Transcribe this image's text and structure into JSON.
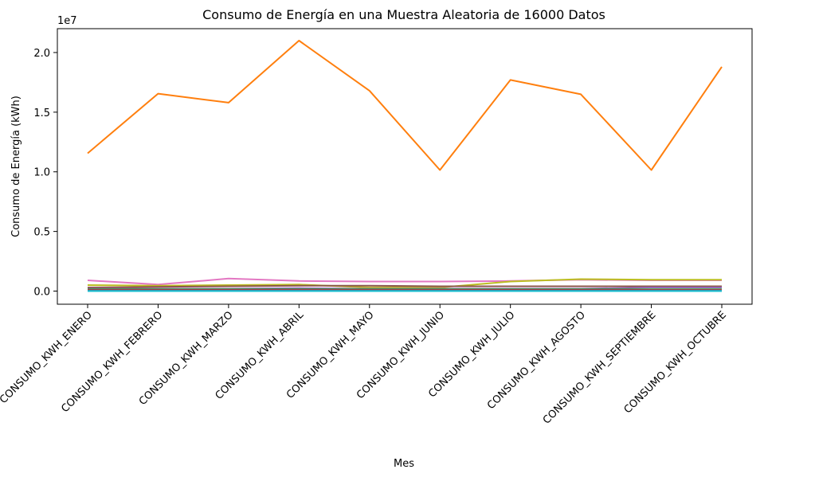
{
  "chart_data": {
    "type": "line",
    "title": "Consumo de Energía en una Muestra Aleatoria de 16000 Datos",
    "xlabel": "Mes",
    "ylabel": "Consumo de Energía (kWh)",
    "y_multiplier_label": "1e7",
    "ylim": [
      -1100000,
      22000000
    ],
    "y_ticks": [
      0,
      5000000,
      10000000,
      15000000,
      20000000
    ],
    "y_tick_labels": [
      "0.0",
      "0.5",
      "1.0",
      "1.5",
      "2.0"
    ],
    "grid": false,
    "legend": "none",
    "categories": [
      "CONSUMO_KWH_ENERO",
      "CONSUMO_KWH_FEBRERO",
      "CONSUMO_KWH_MARZO",
      "CONSUMO_KWH_ABRIL",
      "CONSUMO_KWH_MAYO",
      "CONSUMO_KWH_JUNIO",
      "CONSUMO_KWH_JULIO",
      "CONSUMO_KWH_AGOSTO",
      "CONSUMO_KWH_SEPTIEMBRE",
      "CONSUMO_KWH_OCTUBRE"
    ],
    "series": [
      {
        "color": "#ff7f0e",
        "values": [
          11550000,
          16550000,
          15800000,
          21000000,
          16800000,
          10150000,
          17700000,
          16500000,
          10150000,
          18800000
        ]
      },
      {
        "color": "#e377c2",
        "values": [
          900000,
          550000,
          1050000,
          850000,
          800000,
          800000,
          850000,
          950000,
          900000,
          900000
        ]
      },
      {
        "color": "#bcbd22",
        "values": [
          500000,
          450000,
          500000,
          550000,
          300000,
          300000,
          800000,
          1000000,
          950000,
          950000
        ]
      },
      {
        "color": "#8c564b",
        "values": [
          300000,
          350000,
          400000,
          450000,
          450000,
          400000,
          400000,
          400000,
          400000,
          400000
        ]
      },
      {
        "color": "#9467bd",
        "values": [
          200000,
          200000,
          200000,
          250000,
          200000,
          200000,
          200000,
          200000,
          300000,
          300000
        ]
      },
      {
        "color": "#2ca02c",
        "values": [
          150000,
          150000,
          150000,
          150000,
          150000,
          150000,
          150000,
          150000,
          150000,
          150000
        ]
      },
      {
        "color": "#d62728",
        "values": [
          100000,
          100000,
          100000,
          100000,
          100000,
          100000,
          100000,
          100000,
          100000,
          100000
        ]
      },
      {
        "color": "#1f77b4",
        "values": [
          50000,
          50000,
          50000,
          50000,
          50000,
          50000,
          50000,
          50000,
          50000,
          50000
        ]
      },
      {
        "color": "#7f7f7f",
        "values": [
          20000,
          20000,
          20000,
          20000,
          20000,
          20000,
          20000,
          20000,
          20000,
          20000
        ]
      },
      {
        "color": "#17becf",
        "values": [
          0,
          0,
          0,
          0,
          0,
          0,
          0,
          0,
          0,
          0
        ]
      }
    ]
  }
}
